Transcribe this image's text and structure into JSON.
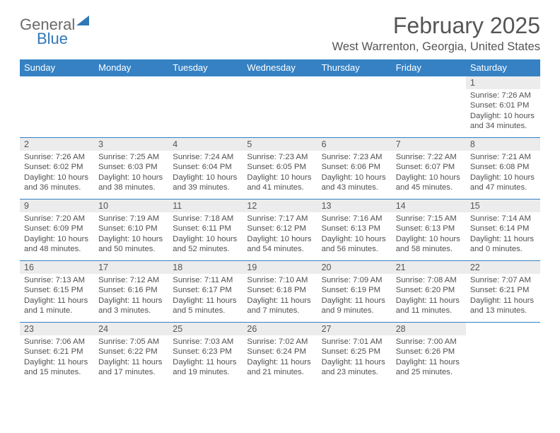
{
  "logo": {
    "part1": "General",
    "part2": "Blue"
  },
  "title": "February 2025",
  "subtitle": "West Warrenton, Georgia, United States",
  "colors": {
    "header_bg": "#3581c4",
    "header_text": "#ffffff",
    "daynum_bg": "#ececec",
    "border": "#3581c4",
    "text": "#505050"
  },
  "weekdays": [
    "Sunday",
    "Monday",
    "Tuesday",
    "Wednesday",
    "Thursday",
    "Friday",
    "Saturday"
  ],
  "weeks": [
    [
      null,
      null,
      null,
      null,
      null,
      null,
      {
        "n": "1",
        "sr": "Sunrise: 7:26 AM",
        "ss": "Sunset: 6:01 PM",
        "dl": "Daylight: 10 hours and 34 minutes."
      }
    ],
    [
      {
        "n": "2",
        "sr": "Sunrise: 7:26 AM",
        "ss": "Sunset: 6:02 PM",
        "dl": "Daylight: 10 hours and 36 minutes."
      },
      {
        "n": "3",
        "sr": "Sunrise: 7:25 AM",
        "ss": "Sunset: 6:03 PM",
        "dl": "Daylight: 10 hours and 38 minutes."
      },
      {
        "n": "4",
        "sr": "Sunrise: 7:24 AM",
        "ss": "Sunset: 6:04 PM",
        "dl": "Daylight: 10 hours and 39 minutes."
      },
      {
        "n": "5",
        "sr": "Sunrise: 7:23 AM",
        "ss": "Sunset: 6:05 PM",
        "dl": "Daylight: 10 hours and 41 minutes."
      },
      {
        "n": "6",
        "sr": "Sunrise: 7:23 AM",
        "ss": "Sunset: 6:06 PM",
        "dl": "Daylight: 10 hours and 43 minutes."
      },
      {
        "n": "7",
        "sr": "Sunrise: 7:22 AM",
        "ss": "Sunset: 6:07 PM",
        "dl": "Daylight: 10 hours and 45 minutes."
      },
      {
        "n": "8",
        "sr": "Sunrise: 7:21 AM",
        "ss": "Sunset: 6:08 PM",
        "dl": "Daylight: 10 hours and 47 minutes."
      }
    ],
    [
      {
        "n": "9",
        "sr": "Sunrise: 7:20 AM",
        "ss": "Sunset: 6:09 PM",
        "dl": "Daylight: 10 hours and 48 minutes."
      },
      {
        "n": "10",
        "sr": "Sunrise: 7:19 AM",
        "ss": "Sunset: 6:10 PM",
        "dl": "Daylight: 10 hours and 50 minutes."
      },
      {
        "n": "11",
        "sr": "Sunrise: 7:18 AM",
        "ss": "Sunset: 6:11 PM",
        "dl": "Daylight: 10 hours and 52 minutes."
      },
      {
        "n": "12",
        "sr": "Sunrise: 7:17 AM",
        "ss": "Sunset: 6:12 PM",
        "dl": "Daylight: 10 hours and 54 minutes."
      },
      {
        "n": "13",
        "sr": "Sunrise: 7:16 AM",
        "ss": "Sunset: 6:13 PM",
        "dl": "Daylight: 10 hours and 56 minutes."
      },
      {
        "n": "14",
        "sr": "Sunrise: 7:15 AM",
        "ss": "Sunset: 6:13 PM",
        "dl": "Daylight: 10 hours and 58 minutes."
      },
      {
        "n": "15",
        "sr": "Sunrise: 7:14 AM",
        "ss": "Sunset: 6:14 PM",
        "dl": "Daylight: 11 hours and 0 minutes."
      }
    ],
    [
      {
        "n": "16",
        "sr": "Sunrise: 7:13 AM",
        "ss": "Sunset: 6:15 PM",
        "dl": "Daylight: 11 hours and 1 minute."
      },
      {
        "n": "17",
        "sr": "Sunrise: 7:12 AM",
        "ss": "Sunset: 6:16 PM",
        "dl": "Daylight: 11 hours and 3 minutes."
      },
      {
        "n": "18",
        "sr": "Sunrise: 7:11 AM",
        "ss": "Sunset: 6:17 PM",
        "dl": "Daylight: 11 hours and 5 minutes."
      },
      {
        "n": "19",
        "sr": "Sunrise: 7:10 AM",
        "ss": "Sunset: 6:18 PM",
        "dl": "Daylight: 11 hours and 7 minutes."
      },
      {
        "n": "20",
        "sr": "Sunrise: 7:09 AM",
        "ss": "Sunset: 6:19 PM",
        "dl": "Daylight: 11 hours and 9 minutes."
      },
      {
        "n": "21",
        "sr": "Sunrise: 7:08 AM",
        "ss": "Sunset: 6:20 PM",
        "dl": "Daylight: 11 hours and 11 minutes."
      },
      {
        "n": "22",
        "sr": "Sunrise: 7:07 AM",
        "ss": "Sunset: 6:21 PM",
        "dl": "Daylight: 11 hours and 13 minutes."
      }
    ],
    [
      {
        "n": "23",
        "sr": "Sunrise: 7:06 AM",
        "ss": "Sunset: 6:21 PM",
        "dl": "Daylight: 11 hours and 15 minutes."
      },
      {
        "n": "24",
        "sr": "Sunrise: 7:05 AM",
        "ss": "Sunset: 6:22 PM",
        "dl": "Daylight: 11 hours and 17 minutes."
      },
      {
        "n": "25",
        "sr": "Sunrise: 7:03 AM",
        "ss": "Sunset: 6:23 PM",
        "dl": "Daylight: 11 hours and 19 minutes."
      },
      {
        "n": "26",
        "sr": "Sunrise: 7:02 AM",
        "ss": "Sunset: 6:24 PM",
        "dl": "Daylight: 11 hours and 21 minutes."
      },
      {
        "n": "27",
        "sr": "Sunrise: 7:01 AM",
        "ss": "Sunset: 6:25 PM",
        "dl": "Daylight: 11 hours and 23 minutes."
      },
      {
        "n": "28",
        "sr": "Sunrise: 7:00 AM",
        "ss": "Sunset: 6:26 PM",
        "dl": "Daylight: 11 hours and 25 minutes."
      },
      null
    ]
  ]
}
